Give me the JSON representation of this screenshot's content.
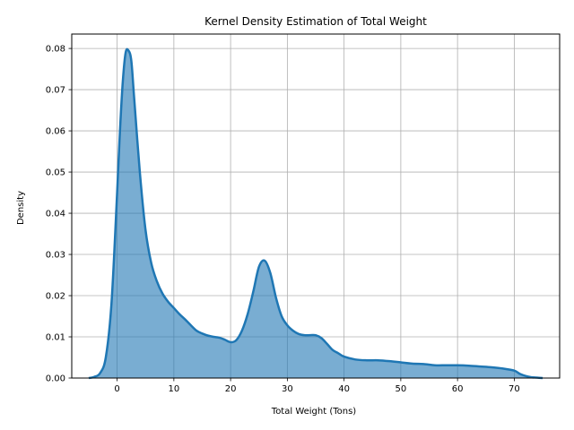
{
  "chart_data": {
    "type": "area",
    "title": "Kernel Density Estimation of Total Weight",
    "xlabel": "Total Weight (Tons)",
    "ylabel": "Density",
    "xlim": [
      -8.0,
      78.0
    ],
    "ylim": [
      0,
      0.0835
    ],
    "grid": true,
    "x_ticks": [
      0,
      10,
      20,
      30,
      40,
      50,
      60,
      70
    ],
    "x_tick_labels": [
      "0",
      "10",
      "20",
      "30",
      "40",
      "50",
      "60",
      "70"
    ],
    "y_ticks": [
      0.0,
      0.01,
      0.02,
      0.03,
      0.04,
      0.05,
      0.06,
      0.07,
      0.08
    ],
    "y_tick_labels": [
      "0.00",
      "0.01",
      "0.02",
      "0.03",
      "0.04",
      "0.05",
      "0.06",
      "0.07",
      "0.08"
    ],
    "colors": {
      "line": "#1f77b4",
      "fill": "#1f77b4",
      "grid": "#b0b0b0"
    },
    "series": [
      {
        "x": [
          -5,
          -4,
          -3,
          -2,
          -1,
          0,
          0.5,
          1,
          1.5,
          2,
          2.5,
          3,
          4,
          5,
          6,
          7,
          8,
          9,
          10,
          11,
          12,
          13,
          14,
          15,
          16,
          17,
          18,
          19,
          20,
          21,
          22,
          23,
          24,
          25,
          26,
          27,
          28,
          29,
          30,
          31,
          32,
          33,
          34,
          35,
          36,
          37,
          38,
          39,
          40,
          42,
          44,
          46,
          48,
          50,
          52,
          54,
          56,
          58,
          60,
          62,
          64,
          66,
          68,
          70,
          71,
          72,
          73,
          74,
          75
        ],
        "y": [
          0.0,
          0.0003,
          0.0012,
          0.005,
          0.018,
          0.045,
          0.06,
          0.072,
          0.079,
          0.0795,
          0.077,
          0.068,
          0.05,
          0.036,
          0.028,
          0.0235,
          0.0205,
          0.0185,
          0.017,
          0.0155,
          0.0142,
          0.0128,
          0.0115,
          0.0108,
          0.0103,
          0.01,
          0.0098,
          0.0093,
          0.0087,
          0.0092,
          0.0115,
          0.0155,
          0.021,
          0.027,
          0.0285,
          0.0255,
          0.0195,
          0.015,
          0.0128,
          0.0115,
          0.0107,
          0.0104,
          0.0104,
          0.0104,
          0.0097,
          0.0083,
          0.0068,
          0.006,
          0.0052,
          0.0045,
          0.0043,
          0.0043,
          0.0041,
          0.0038,
          0.0035,
          0.0034,
          0.0031,
          0.0031,
          0.0031,
          0.003,
          0.0028,
          0.0026,
          0.0023,
          0.0018,
          0.001,
          0.0005,
          0.0002,
          0.0001,
          0.0
        ]
      }
    ]
  }
}
